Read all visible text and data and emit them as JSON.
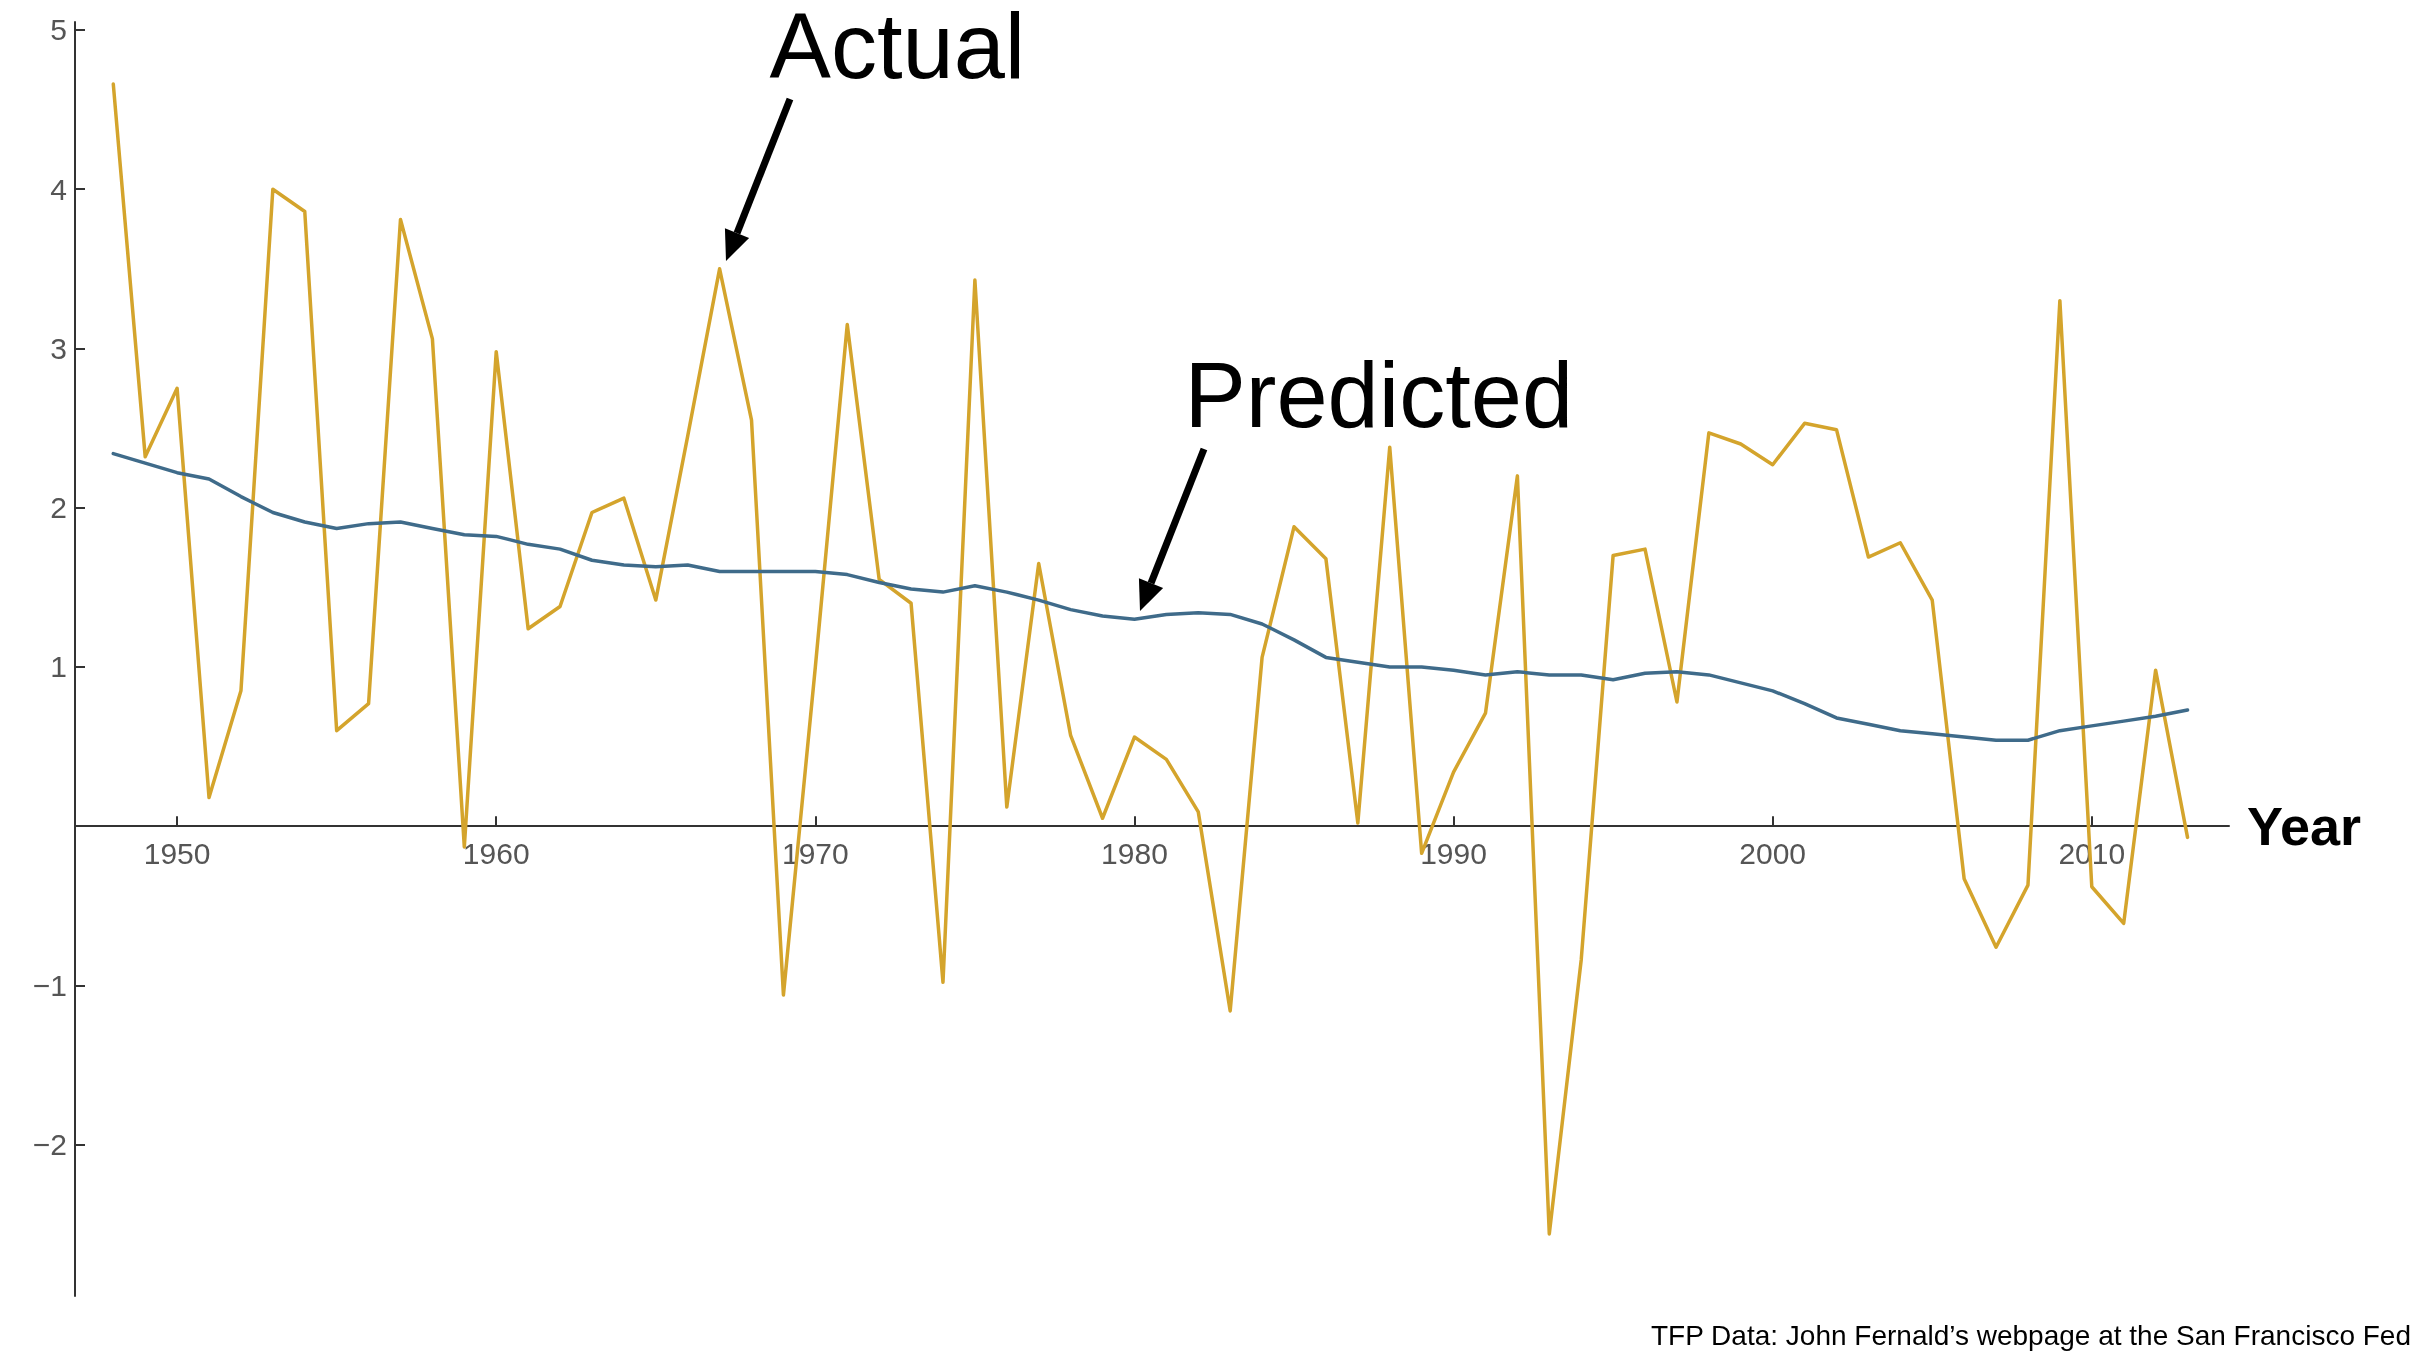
{
  "chart_data": {
    "type": "line",
    "xlabel": "Year",
    "x": [
      1948,
      1949,
      1950,
      1951,
      1952,
      1953,
      1954,
      1955,
      1956,
      1957,
      1958,
      1959,
      1960,
      1961,
      1962,
      1963,
      1964,
      1965,
      1966,
      1967,
      1968,
      1969,
      1970,
      1971,
      1972,
      1973,
      1974,
      1975,
      1976,
      1977,
      1978,
      1979,
      1980,
      1981,
      1982,
      1983,
      1984,
      1985,
      1986,
      1987,
      1988,
      1989,
      1990,
      1991,
      1992,
      1993,
      1994,
      1995,
      1996,
      1997,
      1998,
      1999,
      2000,
      2001,
      2002,
      2003,
      2004,
      2005,
      2006,
      2007,
      2008,
      2009,
      2010,
      2011,
      2012,
      2013
    ],
    "series": [
      {
        "color": "#d4a42c",
        "values": [
          4.66,
          2.32,
          2.75,
          0.18,
          0.85,
          4.0,
          3.86,
          0.6,
          0.77,
          3.81,
          3.06,
          -0.13,
          2.98,
          1.24,
          1.38,
          1.97,
          2.06,
          1.42,
          2.45,
          3.5,
          2.55,
          -1.06,
          1.0,
          3.15,
          1.55,
          1.4,
          -0.98,
          3.43,
          0.12,
          1.65,
          0.57,
          0.05,
          0.56,
          0.42,
          0.09,
          -1.16,
          1.06,
          1.88,
          1.68,
          0.02,
          2.38,
          -0.17,
          0.34,
          0.71,
          2.2,
          -2.56,
          -0.84,
          1.7,
          1.74,
          0.78,
          2.47,
          2.4,
          2.27,
          2.53,
          2.49,
          1.69,
          1.78,
          1.42,
          -0.33,
          -0.76,
          -0.37,
          3.3,
          -0.38,
          -0.61,
          0.98,
          -0.07
        ]
      },
      {
        "color": "#3f6b8a",
        "values": [
          2.34,
          2.28,
          2.22,
          2.18,
          2.07,
          1.97,
          1.91,
          1.87,
          1.9,
          1.91,
          1.87,
          1.83,
          1.82,
          1.77,
          1.74,
          1.67,
          1.64,
          1.63,
          1.64,
          1.6,
          1.6,
          1.6,
          1.6,
          1.58,
          1.53,
          1.49,
          1.47,
          1.51,
          1.47,
          1.42,
          1.36,
          1.32,
          1.3,
          1.33,
          1.34,
          1.33,
          1.27,
          1.17,
          1.06,
          1.03,
          1.0,
          1.0,
          0.98,
          0.95,
          0.97,
          0.95,
          0.95,
          0.92,
          0.96,
          0.97,
          0.95,
          0.9,
          0.85,
          0.77,
          0.68,
          0.64,
          0.6,
          0.58,
          0.56,
          0.54,
          0.54,
          0.6,
          0.63,
          0.66,
          0.69,
          0.73
        ]
      }
    ],
    "xlim": [
      1946.8,
      2014.3
    ],
    "xticks": [
      1950,
      1960,
      1970,
      1980,
      1990,
      2000,
      2010
    ],
    "ylim": [
      -2.95,
      5.05
    ],
    "yticks": [
      -2,
      -1,
      {
        "value": 0,
        "label": null
      },
      1,
      2,
      3,
      4,
      5
    ],
    "annotations": [
      {
        "text": "Actual",
        "x": 1967,
        "y": 3.5
      },
      {
        "text": "Predicted",
        "x": 1980,
        "y": 1.3
      },
      "TFP Data: John Fernald’s webpage at the San Francisco Fed"
    ],
    "grid": false,
    "marker": "none",
    "line_style": "solid"
  }
}
